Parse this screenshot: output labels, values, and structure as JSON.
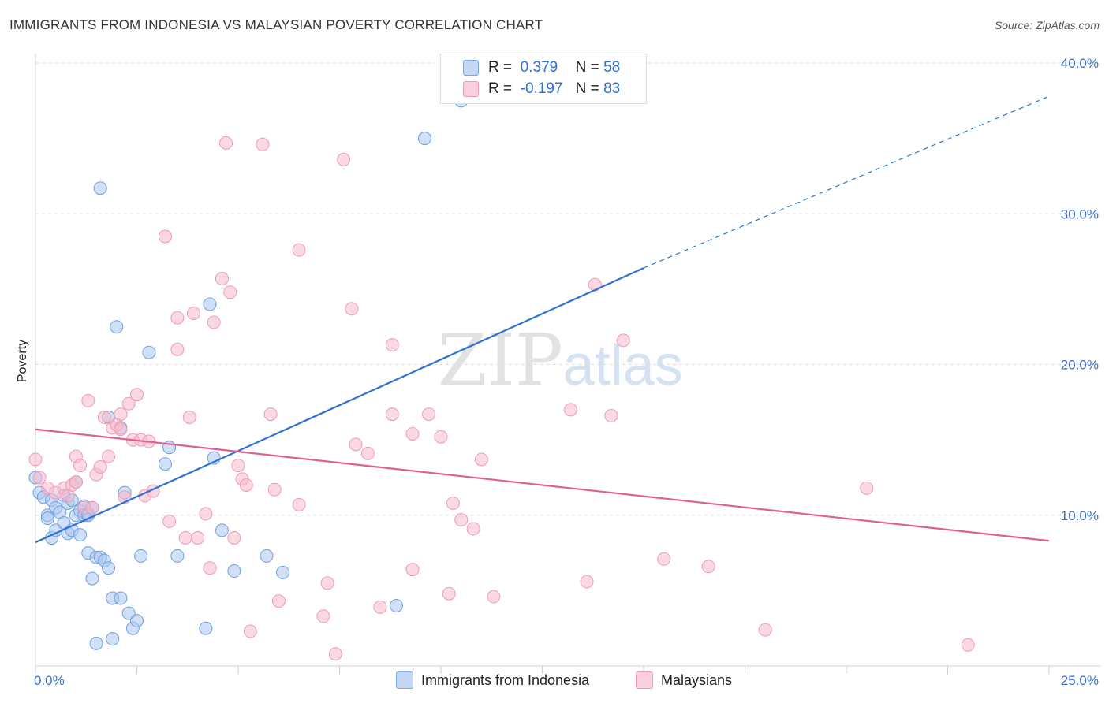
{
  "header": {
    "title": "IMMIGRANTS FROM INDONESIA VS MALAYSIAN POVERTY CORRELATION CHART",
    "source": "Source: ZipAtlas.com"
  },
  "legend": {
    "rows": [
      {
        "r_label": "R =",
        "r_value": "0.379",
        "n_label": "N =",
        "n_value": "58",
        "color": "#a9c7f0"
      },
      {
        "r_label": "R =",
        "r_value": "-0.197",
        "n_label": "N =",
        "n_value": "83",
        "color": "#f7b9cb"
      }
    ],
    "bottom": [
      {
        "label": "Immigrants from Indonesia",
        "color": "#a9c7f0"
      },
      {
        "label": "Malaysians",
        "color": "#f7b9cb"
      }
    ]
  },
  "watermark": {
    "zip": "ZIP",
    "atlas": "atlas"
  },
  "chart_data": {
    "type": "scatter",
    "title": "IMMIGRANTS FROM INDONESIA VS MALAYSIAN POVERTY CORRELATION CHART",
    "xlabel": "",
    "ylabel": "Poverty",
    "xlim": [
      0,
      25
    ],
    "ylim": [
      0,
      40
    ],
    "x_tick_labels": [
      "0.0%",
      "25.0%"
    ],
    "y_ticks": [
      10,
      20,
      30,
      40
    ],
    "y_tick_labels": [
      "10.0%",
      "20.0%",
      "30.0%",
      "40.0%"
    ],
    "grid": true,
    "series": [
      {
        "name": "Immigrants from Indonesia",
        "color": "#6fa0e0",
        "fill": "#a9c7f0",
        "line_color": "#2d72d2",
        "trend": {
          "x": [
            0,
            15
          ],
          "y": [
            8.2,
            26.4
          ],
          "dashed_to": [
            25,
            37.8
          ]
        },
        "points": [
          [
            0.1,
            11.5
          ],
          [
            0.2,
            11.2
          ],
          [
            0.3,
            10.0
          ],
          [
            0.3,
            9.8
          ],
          [
            0.4,
            11.0
          ],
          [
            0.4,
            8.5
          ],
          [
            0.5,
            9.0
          ],
          [
            0.5,
            10.5
          ],
          [
            0.6,
            10.2
          ],
          [
            0.7,
            11.3
          ],
          [
            0.7,
            9.5
          ],
          [
            0.8,
            8.8
          ],
          [
            0.8,
            10.8
          ],
          [
            0.9,
            11.0
          ],
          [
            0.9,
            9.0
          ],
          [
            1.0,
            10.0
          ],
          [
            1.0,
            12.2
          ],
          [
            1.1,
            8.7
          ],
          [
            1.1,
            10.3
          ],
          [
            1.2,
            10.6
          ],
          [
            1.2,
            10.0
          ],
          [
            1.3,
            10.1
          ],
          [
            1.3,
            7.5
          ],
          [
            1.3,
            10.0
          ],
          [
            1.4,
            10.5
          ],
          [
            1.4,
            5.8
          ],
          [
            1.5,
            7.2
          ],
          [
            1.5,
            1.5
          ],
          [
            1.6,
            7.2
          ],
          [
            1.6,
            31.7
          ],
          [
            1.7,
            7.0
          ],
          [
            1.8,
            6.5
          ],
          [
            1.8,
            16.5
          ],
          [
            1.9,
            1.8
          ],
          [
            1.9,
            4.5
          ],
          [
            2.0,
            22.5
          ],
          [
            2.1,
            15.8
          ],
          [
            2.1,
            4.5
          ],
          [
            2.2,
            11.5
          ],
          [
            2.3,
            3.5
          ],
          [
            2.4,
            2.5
          ],
          [
            2.5,
            3.0
          ],
          [
            2.6,
            7.3
          ],
          [
            2.8,
            20.8
          ],
          [
            3.2,
            13.4
          ],
          [
            3.3,
            14.5
          ],
          [
            3.5,
            7.3
          ],
          [
            4.2,
            2.5
          ],
          [
            4.3,
            24.0
          ],
          [
            4.4,
            13.8
          ],
          [
            4.6,
            9.0
          ],
          [
            4.9,
            6.3
          ],
          [
            5.7,
            7.3
          ],
          [
            6.1,
            6.2
          ],
          [
            8.9,
            4.0
          ],
          [
            9.6,
            35.0
          ],
          [
            10.5,
            37.5
          ],
          [
            0.0,
            12.5
          ]
        ]
      },
      {
        "name": "Malaysians",
        "color": "#ee9ab5",
        "fill": "#f7b9cb",
        "line_color": "#e0608e",
        "trend": {
          "x": [
            0,
            25
          ],
          "y": [
            15.7,
            8.3
          ]
        },
        "points": [
          [
            0.0,
            13.7
          ],
          [
            0.1,
            12.5
          ],
          [
            0.3,
            11.8
          ],
          [
            0.5,
            11.5
          ],
          [
            0.7,
            11.8
          ],
          [
            0.8,
            11.3
          ],
          [
            0.9,
            12.0
          ],
          [
            1.0,
            12.2
          ],
          [
            1.0,
            13.9
          ],
          [
            1.1,
            13.3
          ],
          [
            1.2,
            10.5
          ],
          [
            1.3,
            17.6
          ],
          [
            1.4,
            10.5
          ],
          [
            1.5,
            12.7
          ],
          [
            1.6,
            13.2
          ],
          [
            1.7,
            16.5
          ],
          [
            1.8,
            13.9
          ],
          [
            1.9,
            15.8
          ],
          [
            2.0,
            16.0
          ],
          [
            2.1,
            15.7
          ],
          [
            2.1,
            16.7
          ],
          [
            2.2,
            11.2
          ],
          [
            2.3,
            17.4
          ],
          [
            2.4,
            15.0
          ],
          [
            2.5,
            18.0
          ],
          [
            2.6,
            15.0
          ],
          [
            2.7,
            11.3
          ],
          [
            2.8,
            14.9
          ],
          [
            2.9,
            11.6
          ],
          [
            3.2,
            28.5
          ],
          [
            3.3,
            9.6
          ],
          [
            3.5,
            23.1
          ],
          [
            3.5,
            21.0
          ],
          [
            3.7,
            8.5
          ],
          [
            3.8,
            16.5
          ],
          [
            3.9,
            23.4
          ],
          [
            4.0,
            8.5
          ],
          [
            4.2,
            10.1
          ],
          [
            4.3,
            6.5
          ],
          [
            4.4,
            22.8
          ],
          [
            4.6,
            25.7
          ],
          [
            4.7,
            34.7
          ],
          [
            4.8,
            24.8
          ],
          [
            4.9,
            8.5
          ],
          [
            5.0,
            13.3
          ],
          [
            5.1,
            12.4
          ],
          [
            5.2,
            12.0
          ],
          [
            5.3,
            2.3
          ],
          [
            5.6,
            34.6
          ],
          [
            5.8,
            16.7
          ],
          [
            5.9,
            11.7
          ],
          [
            6.0,
            4.3
          ],
          [
            6.5,
            27.6
          ],
          [
            6.5,
            10.7
          ],
          [
            7.1,
            3.3
          ],
          [
            7.2,
            5.5
          ],
          [
            7.4,
            0.8
          ],
          [
            7.6,
            33.6
          ],
          [
            7.8,
            23.7
          ],
          [
            7.9,
            14.7
          ],
          [
            8.2,
            14.1
          ],
          [
            8.5,
            3.9
          ],
          [
            8.8,
            21.3
          ],
          [
            8.8,
            16.7
          ],
          [
            9.3,
            15.4
          ],
          [
            9.3,
            6.4
          ],
          [
            9.7,
            16.7
          ],
          [
            10.0,
            15.2
          ],
          [
            10.2,
            4.8
          ],
          [
            10.3,
            10.8
          ],
          [
            10.5,
            9.7
          ],
          [
            10.8,
            9.1
          ],
          [
            11.0,
            13.7
          ],
          [
            11.3,
            4.6
          ],
          [
            13.2,
            17.0
          ],
          [
            13.6,
            5.6
          ],
          [
            13.8,
            25.3
          ],
          [
            14.2,
            16.6
          ],
          [
            14.5,
            21.6
          ],
          [
            15.5,
            7.1
          ],
          [
            16.6,
            6.6
          ],
          [
            18.0,
            2.4
          ],
          [
            20.5,
            11.8
          ],
          [
            23.0,
            1.4
          ]
        ]
      }
    ]
  }
}
